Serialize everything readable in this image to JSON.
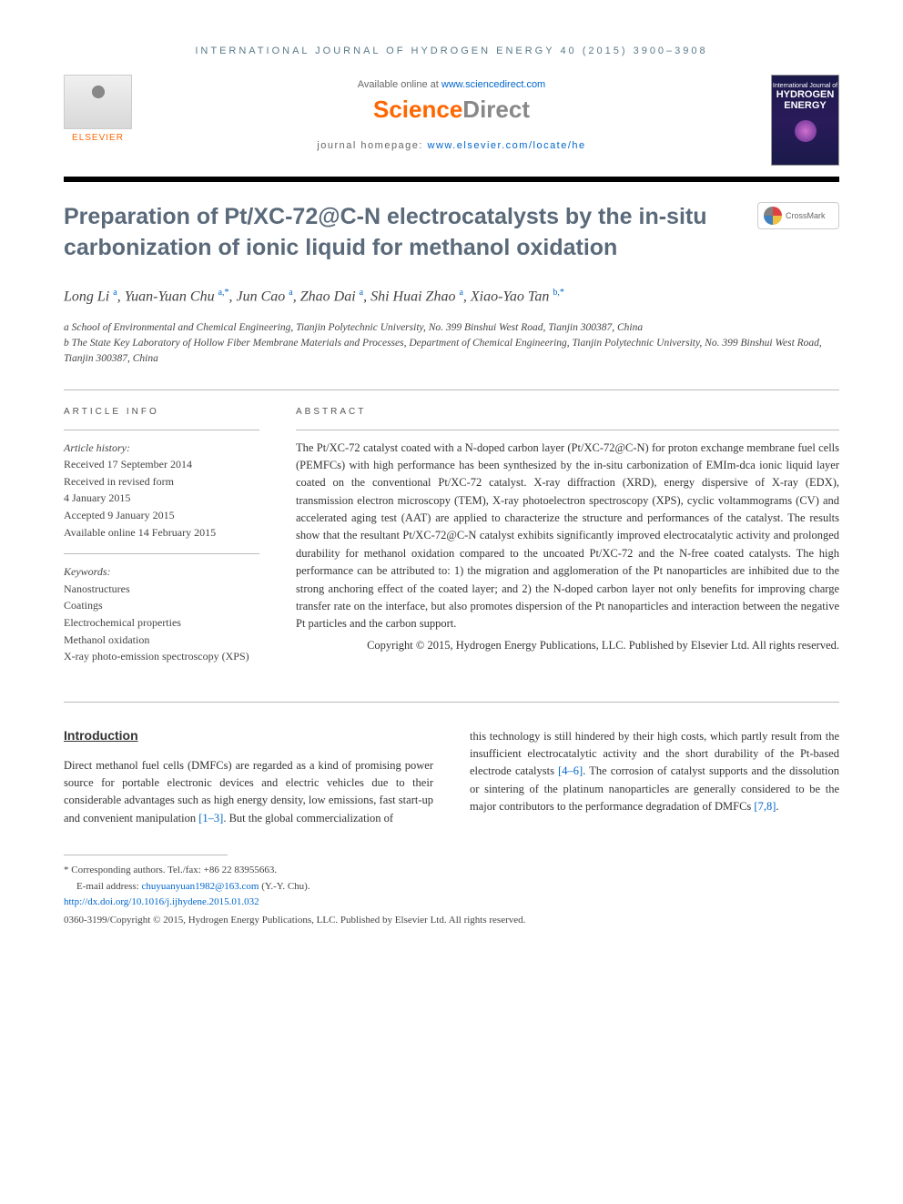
{
  "header": {
    "journal_ref": "INTERNATIONAL JOURNAL OF HYDROGEN ENERGY 40 (2015) 3900–3908",
    "available_prefix": "Available online at ",
    "available_link": "www.sciencedirect.com",
    "sd_logo_1": "Science",
    "sd_logo_2": "Direct",
    "homepage_prefix": "journal homepage: ",
    "homepage_link": "www.elsevier.com/locate/he",
    "elsevier_label": "ELSEVIER",
    "cover_line1": "International Journal of",
    "cover_line2": "HYDROGEN",
    "cover_line3": "ENERGY",
    "crossmark_label": "CrossMark"
  },
  "title": "Preparation of Pt/XC-72@C-N electrocatalysts by the in-situ carbonization of ionic liquid for methanol oxidation",
  "authors_html": "Long Li <sup>a</sup>, Yuan-Yuan Chu <sup>a,*</sup>, Jun Cao <sup>a</sup>, Zhao Dai <sup>a</sup>, Shi Huai Zhao <sup>a</sup>, Xiao-Yao Tan <sup>b,*</sup>",
  "affiliations": {
    "a": "a School of Environmental and Chemical Engineering, Tianjin Polytechnic University, No. 399 Binshui West Road, Tianjin 300387, China",
    "b": "b The State Key Laboratory of Hollow Fiber Membrane Materials and Processes, Department of Chemical Engineering, Tianjin Polytechnic University, No. 399 Binshui West Road, Tianjin 300387, China"
  },
  "info": {
    "heading": "ARTICLE INFO",
    "history_label": "Article history:",
    "received": "Received 17 September 2014",
    "revised1": "Received in revised form",
    "revised2": "4 January 2015",
    "accepted": "Accepted 9 January 2015",
    "online": "Available online 14 February 2015",
    "keywords_label": "Keywords:",
    "keywords": [
      "Nanostructures",
      "Coatings",
      "Electrochemical properties",
      "Methanol oxidation",
      "X-ray photo-emission spectroscopy (XPS)"
    ]
  },
  "abstract": {
    "heading": "ABSTRACT",
    "text": "The Pt/XC-72 catalyst coated with a N-doped carbon layer (Pt/XC-72@C-N) for proton exchange membrane fuel cells (PEMFCs) with high performance has been synthesized by the in-situ carbonization of EMIm-dca ionic liquid layer coated on the conventional Pt/XC-72 catalyst. X-ray diffraction (XRD), energy dispersive of X-ray (EDX), transmission electron microscopy (TEM), X-ray photoelectron spectroscopy (XPS), cyclic voltammograms (CV) and accelerated aging test (AAT) are applied to characterize the structure and performances of the catalyst. The results show that the resultant Pt/XC-72@C-N catalyst exhibits significantly improved electrocatalytic activity and prolonged durability for methanol oxidation compared to the uncoated Pt/XC-72 and the N-free coated catalysts. The high performance can be attributed to: 1) the migration and agglomeration of the Pt nanoparticles are inhibited due to the strong anchoring effect of the coated layer; and 2) the N-doped carbon layer not only benefits for improving charge transfer rate on the interface, but also promotes dispersion of the Pt nanoparticles and interaction between the negative Pt particles and the carbon support.",
    "copyright": "Copyright © 2015, Hydrogen Energy Publications, LLC. Published by Elsevier Ltd. All rights reserved."
  },
  "body": {
    "section_heading": "Introduction",
    "col1": "Direct methanol fuel cells (DMFCs) are regarded as a kind of promising power source for portable electronic devices and electric vehicles due to their considerable advantages such as high energy density, low emissions, fast start-up and convenient manipulation [1–3]. But the global commercialization of",
    "col2": "this technology is still hindered by their high costs, which partly result from the insufficient electrocatalytic activity and the short durability of the Pt-based electrode catalysts [4–6]. The corrosion of catalyst supports and the dissolution or sintering of the platinum nanoparticles are generally considered to be the major contributors to the performance degradation of DMFCs [7,8].",
    "refs": {
      "r1": "[1–3]",
      "r2": "[4–6]",
      "r3": "[7,8]"
    }
  },
  "footer": {
    "corresponding": "* Corresponding authors. Tel./fax: +86 22 83955663.",
    "email_label": "E-mail address: ",
    "email": "chuyuanyuan1982@163.com",
    "email_suffix": " (Y.-Y. Chu).",
    "doi": "http://dx.doi.org/10.1016/j.ijhydene.2015.01.032",
    "issn_copyright": "0360-3199/Copyright © 2015, Hydrogen Energy Publications, LLC. Published by Elsevier Ltd. All rights reserved."
  },
  "colors": {
    "link": "#0066cc",
    "orange": "#ff6600",
    "title_gray": "#5a6a7a",
    "text": "#333333",
    "bar": "#000000"
  }
}
